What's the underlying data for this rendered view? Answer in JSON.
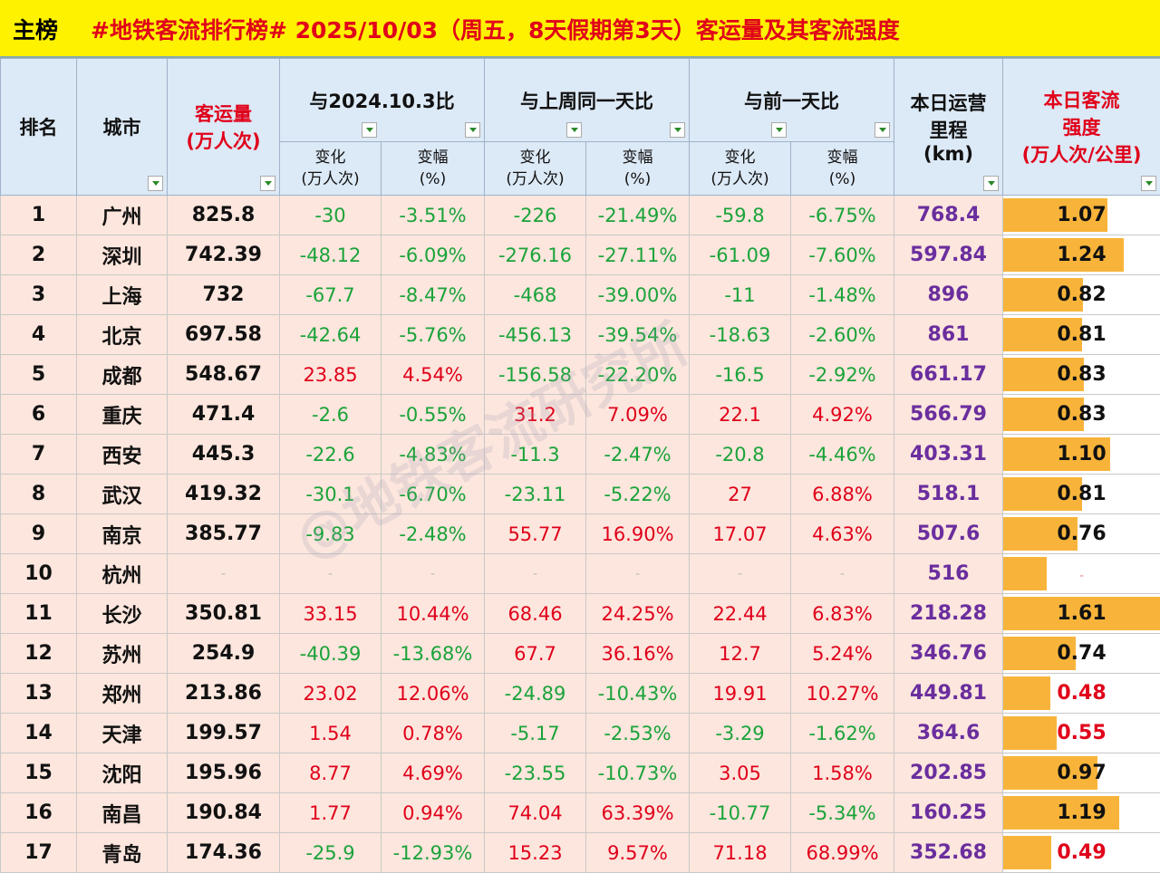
{
  "title": {
    "tag": "主榜",
    "text": "#地铁客流排行榜# 2025/10/03（周五，8天假期第3天）客运量及其客流强度"
  },
  "headers": {
    "rank": "排名",
    "city": "城市",
    "volume_l1": "客运量",
    "volume_l2": "(万人次)",
    "vs_2024": "与2024.10.3比",
    "vs_week": "与上周同一天比",
    "vs_prev": "与前一天比",
    "change_l1": "变化",
    "change_l2": "(万人次)",
    "pct_l1": "变幅",
    "pct_l2": "(%)",
    "km_l1": "本日运营",
    "km_l2": "里程",
    "km_l3": "(km)",
    "int_l1": "本日客流",
    "int_l2": "强度",
    "int_l3": "(万人次/公里)"
  },
  "watermark": "@地铁客流研究所",
  "colors": {
    "positive": "#e0001a",
    "negative": "#1aa33a",
    "mileage": "#6a2e9e",
    "bar": "#f8b43a",
    "title_bg": "#fff200"
  },
  "rows": [
    {
      "rank": "1",
      "city": "广州",
      "vol": "825.8",
      "c1": "-30",
      "p1": "-3.51%",
      "c2": "-226",
      "p2": "-21.49%",
      "c3": "-59.8",
      "p3": "-6.75%",
      "km": "768.4",
      "int": "1.07",
      "intv": 1.07
    },
    {
      "rank": "2",
      "city": "深圳",
      "vol": "742.39",
      "c1": "-48.12",
      "p1": "-6.09%",
      "c2": "-276.16",
      "p2": "-27.11%",
      "c3": "-61.09",
      "p3": "-7.60%",
      "km": "597.84",
      "int": "1.24",
      "intv": 1.24
    },
    {
      "rank": "3",
      "city": "上海",
      "vol": "732",
      "c1": "-67.7",
      "p1": "-8.47%",
      "c2": "-468",
      "p2": "-39.00%",
      "c3": "-11",
      "p3": "-1.48%",
      "km": "896",
      "int": "0.82",
      "intv": 0.82
    },
    {
      "rank": "4",
      "city": "北京",
      "vol": "697.58",
      "c1": "-42.64",
      "p1": "-5.76%",
      "c2": "-456.13",
      "p2": "-39.54%",
      "c3": "-18.63",
      "p3": "-2.60%",
      "km": "861",
      "int": "0.81",
      "intv": 0.81
    },
    {
      "rank": "5",
      "city": "成都",
      "vol": "548.67",
      "c1": "23.85",
      "p1": "4.54%",
      "c2": "-156.58",
      "p2": "-22.20%",
      "c3": "-16.5",
      "p3": "-2.92%",
      "km": "661.17",
      "int": "0.83",
      "intv": 0.83
    },
    {
      "rank": "6",
      "city": "重庆",
      "vol": "471.4",
      "c1": "-2.6",
      "p1": "-0.55%",
      "c2": "31.2",
      "p2": "7.09%",
      "c3": "22.1",
      "p3": "4.92%",
      "km": "566.79",
      "int": "0.83",
      "intv": 0.83
    },
    {
      "rank": "7",
      "city": "西安",
      "vol": "445.3",
      "c1": "-22.6",
      "p1": "-4.83%",
      "c2": "-11.3",
      "p2": "-2.47%",
      "c3": "-20.8",
      "p3": "-4.46%",
      "km": "403.31",
      "int": "1.10",
      "intv": 1.1
    },
    {
      "rank": "8",
      "city": "武汉",
      "vol": "419.32",
      "c1": "-30.1",
      "p1": "-6.70%",
      "c2": "-23.11",
      "p2": "-5.22%",
      "c3": "27",
      "p3": "6.88%",
      "km": "518.1",
      "int": "0.81",
      "intv": 0.81
    },
    {
      "rank": "9",
      "city": "南京",
      "vol": "385.77",
      "c1": "-9.83",
      "p1": "-2.48%",
      "c2": "55.77",
      "p2": "16.90%",
      "c3": "17.07",
      "p3": "4.63%",
      "km": "507.6",
      "int": "0.76",
      "intv": 0.76
    },
    {
      "rank": "10",
      "city": "杭州",
      "vol": "-",
      "c1": "-",
      "p1": "-",
      "c2": "-",
      "p2": "-",
      "c3": "-",
      "p3": "-",
      "km": "516",
      "int": "-",
      "intv": 0.45
    },
    {
      "rank": "11",
      "city": "长沙",
      "vol": "350.81",
      "c1": "33.15",
      "p1": "10.44%",
      "c2": "68.46",
      "p2": "24.25%",
      "c3": "22.44",
      "p3": "6.83%",
      "km": "218.28",
      "int": "1.61",
      "intv": 1.61
    },
    {
      "rank": "12",
      "city": "苏州",
      "vol": "254.9",
      "c1": "-40.39",
      "p1": "-13.68%",
      "c2": "67.7",
      "p2": "36.16%",
      "c3": "12.7",
      "p3": "5.24%",
      "km": "346.76",
      "int": "0.74",
      "intv": 0.74
    },
    {
      "rank": "13",
      "city": "郑州",
      "vol": "213.86",
      "c1": "23.02",
      "p1": "12.06%",
      "c2": "-24.89",
      "p2": "-10.43%",
      "c3": "19.91",
      "p3": "10.27%",
      "km": "449.81",
      "int": "0.48",
      "intv": 0.48
    },
    {
      "rank": "14",
      "city": "天津",
      "vol": "199.57",
      "c1": "1.54",
      "p1": "0.78%",
      "c2": "-5.17",
      "p2": "-2.53%",
      "c3": "-3.29",
      "p3": "-1.62%",
      "km": "364.6",
      "int": "0.55",
      "intv": 0.55
    },
    {
      "rank": "15",
      "city": "沈阳",
      "vol": "195.96",
      "c1": "8.77",
      "p1": "4.69%",
      "c2": "-23.55",
      "p2": "-10.73%",
      "c3": "3.05",
      "p3": "1.58%",
      "km": "202.85",
      "int": "0.97",
      "intv": 0.97
    },
    {
      "rank": "16",
      "city": "南昌",
      "vol": "190.84",
      "c1": "1.77",
      "p1": "0.94%",
      "c2": "74.04",
      "p2": "63.39%",
      "c3": "-10.77",
      "p3": "-5.34%",
      "km": "160.25",
      "int": "1.19",
      "intv": 1.19
    },
    {
      "rank": "17",
      "city": "青岛",
      "vol": "174.36",
      "c1": "-25.9",
      "p1": "-12.93%",
      "c2": "15.23",
      "p2": "9.57%",
      "c3": "71.18",
      "p3": "68.99%",
      "km": "352.68",
      "int": "0.49",
      "intv": 0.49
    }
  ]
}
